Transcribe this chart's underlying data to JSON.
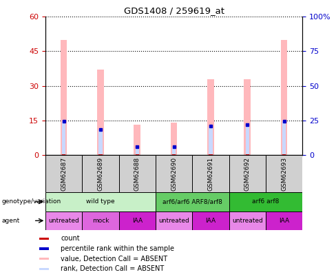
{
  "title": "GDS1408 / 259619_at",
  "samples": [
    "GSM62687",
    "GSM62689",
    "GSM62688",
    "GSM62690",
    "GSM62691",
    "GSM62692",
    "GSM62693"
  ],
  "absent_value": [
    50,
    37,
    13,
    14,
    33,
    33,
    50
  ],
  "absent_rank": [
    14.5,
    11.0,
    3.5,
    3.5,
    12.5,
    13.0,
    14.5
  ],
  "count_value": [
    0.3,
    0.3,
    0.3,
    0.3,
    0.3,
    0.3,
    0.3
  ],
  "percentile_rank": [
    14.5,
    11.0,
    3.5,
    3.5,
    12.5,
    13.0,
    14.5
  ],
  "left_ylim": [
    0,
    60
  ],
  "right_ylim": [
    0,
    100
  ],
  "left_yticks": [
    0,
    15,
    30,
    45,
    60
  ],
  "right_yticks": [
    0,
    25,
    50,
    75,
    100
  ],
  "right_yticklabels": [
    "0",
    "25",
    "50",
    "75",
    "100%"
  ],
  "genotype_groups": [
    {
      "label": "wild type",
      "span": [
        0,
        3
      ],
      "color": "#c8f0c8"
    },
    {
      "label": "arf6/arf6 ARF8/arf8",
      "span": [
        3,
        5
      ],
      "color": "#66cc66"
    },
    {
      "label": "arf6 arf8",
      "span": [
        5,
        7
      ],
      "color": "#33bb33"
    }
  ],
  "agent_groups": [
    {
      "label": "untreated",
      "span": [
        0,
        1
      ],
      "color": "#e888e8"
    },
    {
      "label": "mock",
      "span": [
        1,
        2
      ],
      "color": "#dd66dd"
    },
    {
      "label": "IAA",
      "span": [
        2,
        3
      ],
      "color": "#cc22cc"
    },
    {
      "label": "untreated",
      "span": [
        3,
        4
      ],
      "color": "#e888e8"
    },
    {
      "label": "IAA",
      "span": [
        4,
        5
      ],
      "color": "#cc22cc"
    },
    {
      "label": "untreated",
      "span": [
        5,
        6
      ],
      "color": "#e888e8"
    },
    {
      "label": "IAA",
      "span": [
        6,
        7
      ],
      "color": "#cc22cc"
    }
  ],
  "legend_items": [
    {
      "color": "#cc0000",
      "label": "count"
    },
    {
      "color": "#0000cc",
      "label": "percentile rank within the sample"
    },
    {
      "color": "#ffb8bc",
      "label": "value, Detection Call = ABSENT"
    },
    {
      "color": "#c8d8ff",
      "label": "rank, Detection Call = ABSENT"
    }
  ],
  "absent_value_color": "#ffb8bc",
  "absent_rank_color": "#c8d8ff",
  "count_color": "#cc0000",
  "percentile_color": "#0000cc",
  "tick_color_left": "#cc0000",
  "tick_color_right": "#0000cc",
  "absent_bar_width": 0.18,
  "marker_size": 5
}
